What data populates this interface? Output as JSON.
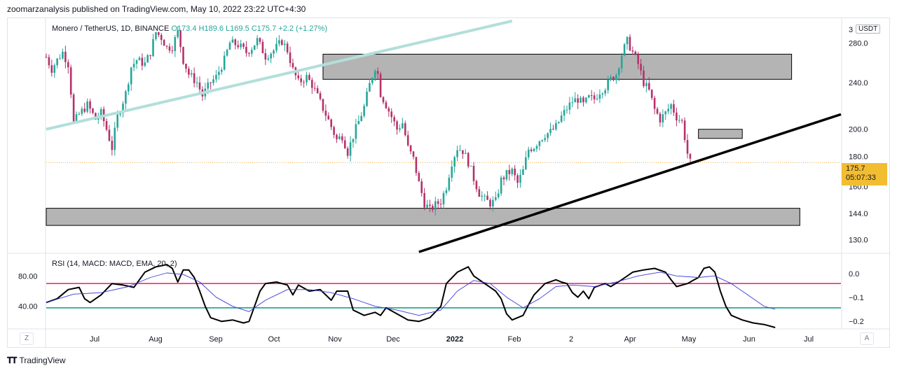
{
  "publisher_line": "zoomarzanalysis published on TradingView.com, May 10, 2022 23:22 UTC+4:30",
  "legend": {
    "symbol": "Monero / TetherUS, 1D, BINANCE",
    "ohlc": "O173.4  H189.6  L169.5  C175.7  +2.2 (+1.27%)"
  },
  "rsi_legend": "RSI (14, MACD: MACD, EMA, 20, 2)",
  "currency_badge": "USDT",
  "price_axis_top_cut": "3",
  "last_price": "175.7",
  "countdown": "05:07:33",
  "footer_brand": "TradingView",
  "buttons": {
    "zoom_left": "Z",
    "auto_right": "A"
  },
  "colors": {
    "up": "#26a69a",
    "down": "#b5316a",
    "rsi_line": "#000000",
    "rsi_ma": "#3b3bd9",
    "upper_band": "#e91e63",
    "lower_band": "#089981",
    "zone_fill": "#b4b4b4",
    "trendline_light": "#b2dfdb",
    "price_highlight": "#f3bd32"
  },
  "chart_data": [
    {
      "type": "candlestick",
      "title": "Monero / TetherUS, 1D, BINANCE",
      "x_tick_labels": [
        "Jul",
        "Aug",
        "Sep",
        "Oct",
        "Nov",
        "Dec",
        "2022",
        "Feb",
        "2",
        "Apr",
        "May",
        "Jun",
        "Jul"
      ],
      "y_tick_labels": [
        "280.0",
        "240.0",
        "200.0",
        "180.0",
        "160.0",
        "144.0",
        "130.0"
      ],
      "y_ticks": [
        280,
        240,
        200,
        180,
        160,
        144,
        130
      ],
      "y_scale": "log",
      "ylim": [
        124,
        305
      ],
      "last_close": 175.7,
      "price_series": [
        [
          0,
          265
        ],
        [
          2,
          253
        ],
        [
          4,
          262
        ],
        [
          6,
          270
        ],
        [
          8,
          258
        ],
        [
          10,
          205
        ],
        [
          12,
          212
        ],
        [
          15,
          220
        ],
        [
          18,
          208
        ],
        [
          20,
          213
        ],
        [
          22,
          200
        ],
        [
          24,
          186
        ],
        [
          26,
          210
        ],
        [
          29,
          230
        ],
        [
          31,
          255
        ],
        [
          33,
          262
        ],
        [
          36,
          258
        ],
        [
          38,
          270
        ],
        [
          40,
          292
        ],
        [
          42,
          286
        ],
        [
          44,
          275
        ],
        [
          46,
          276
        ],
        [
          48,
          292
        ],
        [
          50,
          262
        ],
        [
          52,
          248
        ],
        [
          55,
          240
        ],
        [
          57,
          228
        ],
        [
          60,
          240
        ],
        [
          62,
          245
        ],
        [
          65,
          262
        ],
        [
          67,
          280
        ],
        [
          70,
          278
        ],
        [
          73,
          270
        ],
        [
          75,
          275
        ],
        [
          77,
          283
        ],
        [
          80,
          266
        ],
        [
          83,
          272
        ],
        [
          86,
          282
        ],
        [
          88,
          272
        ],
        [
          90,
          252
        ],
        [
          92,
          240
        ],
        [
          95,
          245
        ],
        [
          97,
          238
        ],
        [
          100,
          222
        ],
        [
          102,
          212
        ],
        [
          104,
          202
        ],
        [
          106,
          192
        ],
        [
          108,
          195
        ],
        [
          110,
          183
        ],
        [
          112,
          195
        ],
        [
          114,
          206
        ],
        [
          116,
          218
        ],
        [
          118,
          238
        ],
        [
          120,
          255
        ],
        [
          121,
          248
        ],
        [
          122,
          230
        ],
        [
          124,
          220
        ],
        [
          126,
          210
        ],
        [
          128,
          200
        ],
        [
          130,
          205
        ],
        [
          132,
          186
        ],
        [
          134,
          178
        ],
        [
          136,
          162
        ],
        [
          138,
          150
        ],
        [
          140,
          146
        ],
        [
          142,
          149
        ],
        [
          144,
          151
        ],
        [
          146,
          160
        ],
        [
          148,
          176
        ],
        [
          150,
          186
        ],
        [
          152,
          184
        ],
        [
          154,
          176
        ],
        [
          156,
          165
        ],
        [
          158,
          156
        ],
        [
          160,
          152
        ],
        [
          162,
          150
        ],
        [
          164,
          151
        ],
        [
          166,
          164
        ],
        [
          168,
          168
        ],
        [
          170,
          170
        ],
        [
          172,
          162
        ],
        [
          174,
          170
        ],
        [
          176,
          185
        ],
        [
          178,
          187
        ],
        [
          180,
          192
        ],
        [
          182,
          196
        ],
        [
          184,
          198
        ],
        [
          186,
          202
        ],
        [
          188,
          210
        ],
        [
          190,
          217
        ],
        [
          192,
          223
        ],
        [
          194,
          225
        ],
        [
          196,
          220
        ],
        [
          198,
          226
        ],
        [
          200,
          225
        ],
        [
          202,
          232
        ],
        [
          204,
          236
        ],
        [
          206,
          243
        ],
        [
          208,
          248
        ],
        [
          210,
          268
        ],
        [
          212,
          282
        ],
        [
          214,
          270
        ],
        [
          216,
          258
        ],
        [
          218,
          240
        ],
        [
          220,
          232
        ],
        [
          222,
          216
        ],
        [
          224,
          208
        ],
        [
          226,
          213
        ],
        [
          228,
          220
        ],
        [
          230,
          210
        ],
        [
          232,
          206
        ],
        [
          234,
          182
        ],
        [
          235,
          175.7
        ]
      ],
      "horizontal_zones": [
        {
          "low": 243,
          "high": 268,
          "from_bar": 101,
          "to_bar": 272
        },
        {
          "low": 193,
          "high": 200,
          "from_bar": 238,
          "to_bar": 254
        },
        {
          "low": 137.5,
          "high": 147,
          "from_bar": 0,
          "to_bar": 275
        }
      ],
      "trend_lines": [
        {
          "style": "light",
          "from": [
            0,
            200
          ],
          "to": [
            170,
            305
          ]
        },
        {
          "style": "bold",
          "from": [
            136,
            124
          ],
          "to": [
            290,
            212
          ]
        }
      ],
      "current_price_line": 175.7
    },
    {
      "type": "line",
      "title": "RSI (14, MACD: MACD, EMA, 20, 2)",
      "left_tick_labels": [
        "80.00",
        "40.00"
      ],
      "left_ticks": [
        80,
        40
      ],
      "right_tick_labels": [
        "0.0",
        "−0.1",
        "−0.2"
      ],
      "bands": [
        {
          "name": "upper",
          "value": 70
        },
        {
          "name": "lower",
          "value": 38
        }
      ],
      "ylim": [
        12,
        108
      ],
      "series": [
        {
          "key": "rsi",
          "points": [
            [
              0,
              45
            ],
            [
              4,
              50
            ],
            [
              8,
              62
            ],
            [
              12,
              65
            ],
            [
              14,
              50
            ],
            [
              16,
              45
            ],
            [
              20,
              55
            ],
            [
              24,
              70
            ],
            [
              28,
              68
            ],
            [
              32,
              65
            ],
            [
              36,
              85
            ],
            [
              40,
              92
            ],
            [
              44,
              95
            ],
            [
              46,
              90
            ],
            [
              48,
              72
            ],
            [
              50,
              88
            ],
            [
              52,
              88
            ],
            [
              54,
              78
            ],
            [
              56,
              60
            ],
            [
              58,
              40
            ],
            [
              60,
              25
            ],
            [
              64,
              20
            ],
            [
              68,
              22
            ],
            [
              72,
              18
            ],
            [
              74,
              20
            ],
            [
              76,
              40
            ],
            [
              78,
              60
            ],
            [
              80,
              70
            ],
            [
              84,
              72
            ],
            [
              88,
              68
            ],
            [
              90,
              55
            ],
            [
              92,
              68
            ],
            [
              96,
              60
            ],
            [
              100,
              62
            ],
            [
              104,
              48
            ],
            [
              106,
              60
            ],
            [
              110,
              60
            ],
            [
              112,
              35
            ],
            [
              116,
              28
            ],
            [
              120,
              32
            ],
            [
              122,
              28
            ],
            [
              124,
              38
            ],
            [
              128,
              30
            ],
            [
              132,
              22
            ],
            [
              136,
              20
            ],
            [
              140,
              25
            ],
            [
              144,
              40
            ],
            [
              146,
              70
            ],
            [
              150,
              85
            ],
            [
              154,
              92
            ],
            [
              156,
              80
            ],
            [
              160,
              70
            ],
            [
              162,
              65
            ],
            [
              164,
              60
            ],
            [
              166,
              50
            ],
            [
              168,
              30
            ],
            [
              170,
              22
            ],
            [
              174,
              28
            ],
            [
              176,
              42
            ],
            [
              178,
              55
            ],
            [
              182,
              70
            ],
            [
              186,
              75
            ],
            [
              188,
              72
            ],
            [
              190,
              70
            ],
            [
              192,
              58
            ],
            [
              194,
              52
            ],
            [
              196,
              60
            ],
            [
              198,
              50
            ],
            [
              200,
              65
            ],
            [
              204,
              70
            ],
            [
              206,
              66
            ],
            [
              210,
              75
            ],
            [
              214,
              85
            ],
            [
              218,
              88
            ],
            [
              222,
              90
            ],
            [
              226,
              85
            ],
            [
              228,
              75
            ],
            [
              230,
              66
            ],
            [
              234,
              70
            ],
            [
              236,
              74
            ],
            [
              238,
              78
            ],
            [
              240,
              90
            ],
            [
              242,
              92
            ],
            [
              244,
              85
            ],
            [
              246,
              60
            ],
            [
              248,
              40
            ],
            [
              250,
              28
            ],
            [
              254,
              22
            ],
            [
              258,
              18
            ],
            [
              262,
              16
            ],
            [
              266,
              12
            ]
          ]
        },
        {
          "key": "rsi_ma",
          "points": [
            [
              0,
              45
            ],
            [
              10,
              56
            ],
            [
              20,
              58
            ],
            [
              30,
              66
            ],
            [
              38,
              78
            ],
            [
              44,
              84
            ],
            [
              50,
              82
            ],
            [
              56,
              72
            ],
            [
              62,
              52
            ],
            [
              68,
              40
            ],
            [
              74,
              33
            ],
            [
              80,
              48
            ],
            [
              88,
              62
            ],
            [
              96,
              62
            ],
            [
              104,
              58
            ],
            [
              112,
              50
            ],
            [
              120,
              40
            ],
            [
              128,
              35
            ],
            [
              136,
              28
            ],
            [
              144,
              35
            ],
            [
              150,
              60
            ],
            [
              156,
              74
            ],
            [
              162,
              70
            ],
            [
              168,
              52
            ],
            [
              174,
              38
            ],
            [
              180,
              50
            ],
            [
              186,
              66
            ],
            [
              192,
              68
            ],
            [
              200,
              66
            ],
            [
              208,
              72
            ],
            [
              216,
              80
            ],
            [
              224,
              85
            ],
            [
              230,
              80
            ],
            [
              238,
              78
            ],
            [
              244,
              80
            ],
            [
              250,
              70
            ],
            [
              256,
              55
            ],
            [
              262,
              40
            ],
            [
              266,
              36
            ]
          ]
        }
      ]
    }
  ]
}
